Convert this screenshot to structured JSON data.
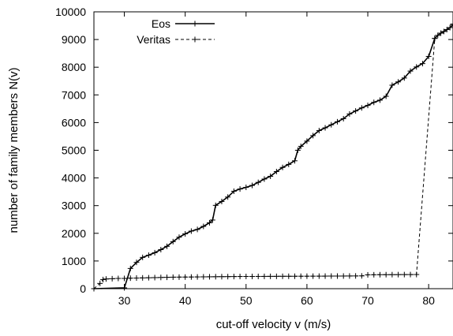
{
  "chart_data": {
    "type": "line",
    "xlabel": "cut-off velocity v (m/s)",
    "ylabel": "number of family members N(v)",
    "xlim": [
      25,
      84
    ],
    "ylim": [
      0,
      10000
    ],
    "xticks": [
      30,
      40,
      50,
      60,
      70,
      80
    ],
    "yticks": [
      0,
      1000,
      2000,
      3000,
      4000,
      5000,
      6000,
      7000,
      8000,
      9000,
      10000
    ],
    "legend": "top-right",
    "series": [
      {
        "name": "Eos",
        "style": "solid",
        "color": "#000000",
        "points": [
          [
            25,
            0
          ],
          [
            30,
            30
          ],
          [
            31,
            730
          ],
          [
            32,
            950
          ],
          [
            33,
            1130
          ],
          [
            34,
            1210
          ],
          [
            35,
            1300
          ],
          [
            36,
            1410
          ],
          [
            37,
            1530
          ],
          [
            38,
            1700
          ],
          [
            39,
            1860
          ],
          [
            40,
            1980
          ],
          [
            41,
            2080
          ],
          [
            42,
            2140
          ],
          [
            43,
            2250
          ],
          [
            44,
            2380
          ],
          [
            44.5,
            2480
          ],
          [
            45,
            3010
          ],
          [
            46,
            3150
          ],
          [
            47,
            3310
          ],
          [
            48,
            3520
          ],
          [
            49,
            3600
          ],
          [
            50,
            3660
          ],
          [
            51,
            3730
          ],
          [
            52,
            3840
          ],
          [
            53,
            3960
          ],
          [
            54,
            4060
          ],
          [
            55,
            4230
          ],
          [
            56,
            4380
          ],
          [
            57,
            4490
          ],
          [
            58,
            4620
          ],
          [
            58.5,
            5000
          ],
          [
            59,
            5140
          ],
          [
            60,
            5330
          ],
          [
            61,
            5530
          ],
          [
            62,
            5710
          ],
          [
            63,
            5810
          ],
          [
            64,
            5920
          ],
          [
            65,
            6030
          ],
          [
            66,
            6140
          ],
          [
            67,
            6310
          ],
          [
            68,
            6420
          ],
          [
            69,
            6530
          ],
          [
            70,
            6620
          ],
          [
            71,
            6730
          ],
          [
            72,
            6810
          ],
          [
            73,
            6950
          ],
          [
            74,
            7350
          ],
          [
            75,
            7470
          ],
          [
            76,
            7610
          ],
          [
            77,
            7860
          ],
          [
            78,
            8010
          ],
          [
            79,
            8130
          ],
          [
            80,
            8390
          ],
          [
            81,
            9040
          ],
          [
            81.5,
            9150
          ],
          [
            82,
            9230
          ],
          [
            82.5,
            9290
          ],
          [
            83,
            9360
          ],
          [
            83.5,
            9430
          ],
          [
            84,
            9520
          ],
          [
            84.5,
            9560
          ]
        ]
      },
      {
        "name": "Veritas",
        "style": "dashed",
        "color": "#000000",
        "points": [
          [
            25,
            0
          ],
          [
            26,
            190
          ],
          [
            26.5,
            330
          ],
          [
            27,
            350
          ],
          [
            28,
            360
          ],
          [
            29,
            370
          ],
          [
            30,
            370
          ],
          [
            31,
            380
          ],
          [
            32,
            385
          ],
          [
            33,
            390
          ],
          [
            34,
            395
          ],
          [
            35,
            400
          ],
          [
            36,
            405
          ],
          [
            37,
            410
          ],
          [
            38,
            415
          ],
          [
            39,
            418
          ],
          [
            40,
            420
          ],
          [
            41,
            422
          ],
          [
            42,
            425
          ],
          [
            43,
            428
          ],
          [
            44,
            430
          ],
          [
            45,
            432
          ],
          [
            46,
            434
          ],
          [
            47,
            436
          ],
          [
            48,
            438
          ],
          [
            49,
            440
          ],
          [
            50,
            441
          ],
          [
            51,
            442
          ],
          [
            52,
            443
          ],
          [
            53,
            444
          ],
          [
            54,
            445
          ],
          [
            55,
            446
          ],
          [
            56,
            447
          ],
          [
            57,
            448
          ],
          [
            58,
            449
          ],
          [
            59,
            450
          ],
          [
            60,
            451
          ],
          [
            61,
            452
          ],
          [
            62,
            453
          ],
          [
            63,
            454
          ],
          [
            64,
            455
          ],
          [
            65,
            456
          ],
          [
            66,
            457
          ],
          [
            67,
            458
          ],
          [
            68,
            460
          ],
          [
            69,
            462
          ],
          [
            70,
            500
          ],
          [
            71,
            503
          ],
          [
            72,
            505
          ],
          [
            73,
            506
          ],
          [
            74,
            507
          ],
          [
            75,
            508
          ],
          [
            76,
            509
          ],
          [
            77,
            510
          ],
          [
            78,
            511
          ],
          [
            81,
            9040
          ]
        ]
      }
    ]
  }
}
